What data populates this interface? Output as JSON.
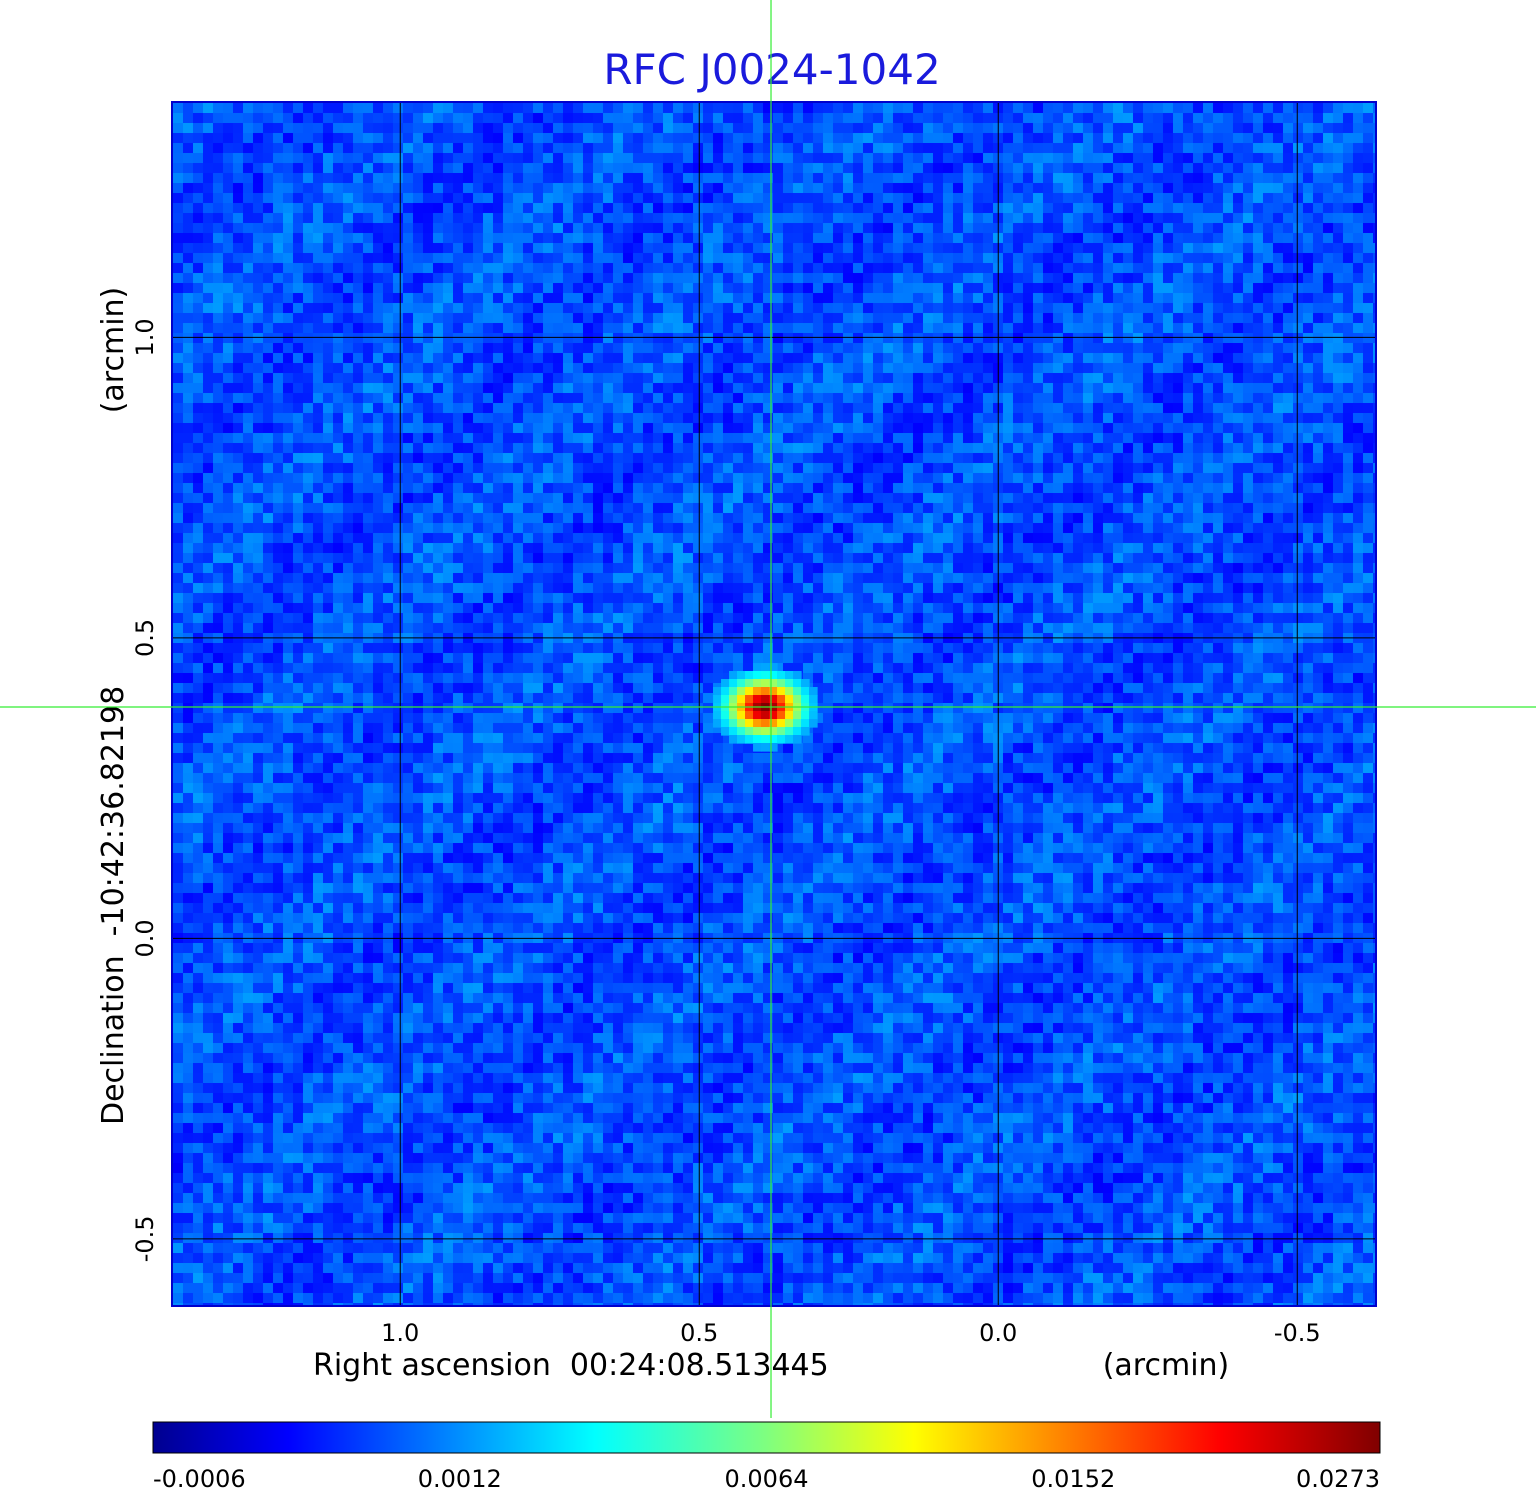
{
  "chart_data": {
    "type": "heatmap",
    "title": "RFC J0024-1042",
    "xlabel": "Right ascension  00:24:08.513445",
    "xunit": "(arcmin)",
    "ylabel": "Declination  -10:42:36.82198",
    "yunit": "(arcmin)",
    "x_ticks": [
      {
        "value": 1.0,
        "label": "1.0"
      },
      {
        "value": 0.5,
        "label": "0.5"
      },
      {
        "value": 0.0,
        "label": "0.0"
      },
      {
        "value": -0.5,
        "label": "-0.5"
      }
    ],
    "y_ticks": [
      {
        "value": 1.0,
        "label": "1.0"
      },
      {
        "value": 0.5,
        "label": "0.5"
      },
      {
        "value": 0.0,
        "label": "0.0"
      },
      {
        "value": -0.5,
        "label": "-0.5"
      }
    ],
    "xlim": [
      1.38,
      -0.63
    ],
    "ylim": [
      -0.61,
      1.39
    ],
    "grid": true,
    "crosshair": {
      "x": 0.38,
      "y": 0.385
    },
    "source": {
      "x": 0.39,
      "y": 0.385,
      "peak": 0.0273
    },
    "colormap": "jet",
    "colorbar": {
      "ticks": [
        "-0.0006",
        "0.0012",
        "0.0064",
        "0.0152",
        "0.0273"
      ],
      "min": -0.0006,
      "max": 0.0273
    }
  },
  "colors": {
    "title": "#1a1adc",
    "crosshair": "#33ee33",
    "grid": "#000000",
    "frame": "#0000cc"
  }
}
